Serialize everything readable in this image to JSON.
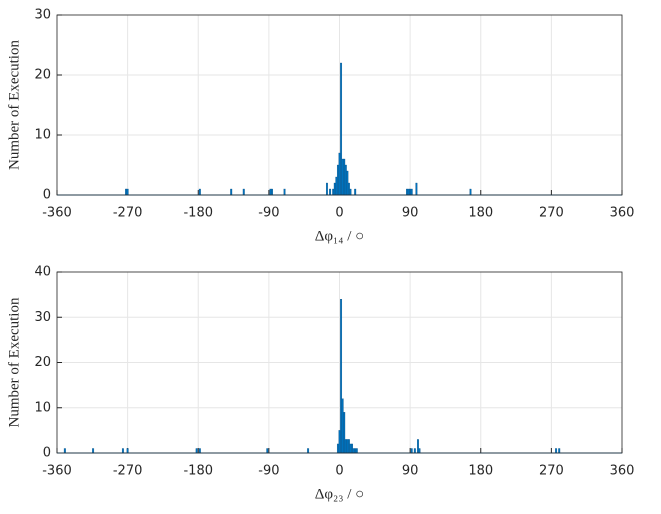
{
  "chart_data": [
    {
      "type": "bar",
      "xlabel": "Δφ₁₄ / ○",
      "ylabel": "Number of Execution",
      "color": "#0072bd",
      "grid": true,
      "xlim": [
        -360,
        360
      ],
      "xticks": [
        -360,
        -270,
        -180,
        -90,
        0,
        90,
        180,
        270,
        360
      ],
      "ylim": [
        0,
        30
      ],
      "yticks": [
        0,
        10,
        20,
        30
      ],
      "x": [
        -272,
        -270,
        -178,
        -138,
        -122,
        -88,
        -86,
        -70,
        -16,
        -12,
        -8,
        -6,
        -4,
        -2,
        0,
        2,
        4,
        6,
        8,
        10,
        12,
        14,
        20,
        86,
        88,
        90,
        92,
        98,
        167
      ],
      "values": [
        1,
        1,
        1,
        1,
        1,
        1,
        1,
        1,
        2,
        1,
        1,
        2,
        3,
        5,
        7,
        22,
        6,
        6,
        5,
        4,
        2,
        1,
        1,
        1,
        1,
        1,
        1,
        2,
        1
      ]
    },
    {
      "type": "bar",
      "xlabel": "Δφ₂₃ / ○",
      "ylabel": "Number of Execution",
      "color": "#0072bd",
      "grid": true,
      "xlim": [
        -360,
        360
      ],
      "xticks": [
        -360,
        -270,
        -180,
        -90,
        0,
        90,
        180,
        270,
        360
      ],
      "ylim": [
        0,
        40
      ],
      "yticks": [
        0,
        10,
        20,
        30,
        40
      ],
      "x": [
        -350,
        -314,
        -276,
        -270,
        -182,
        -178,
        -92,
        -40,
        -2,
        0,
        2,
        4,
        6,
        8,
        10,
        12,
        14,
        16,
        18,
        20,
        22,
        92,
        96,
        100,
        102,
        276,
        280
      ],
      "values": [
        1,
        1,
        1,
        1,
        1,
        1,
        1,
        1,
        2,
        5,
        34,
        12,
        9,
        3,
        3,
        3,
        2,
        2,
        1,
        1,
        1,
        1,
        1,
        3,
        1,
        1,
        1
      ]
    }
  ]
}
